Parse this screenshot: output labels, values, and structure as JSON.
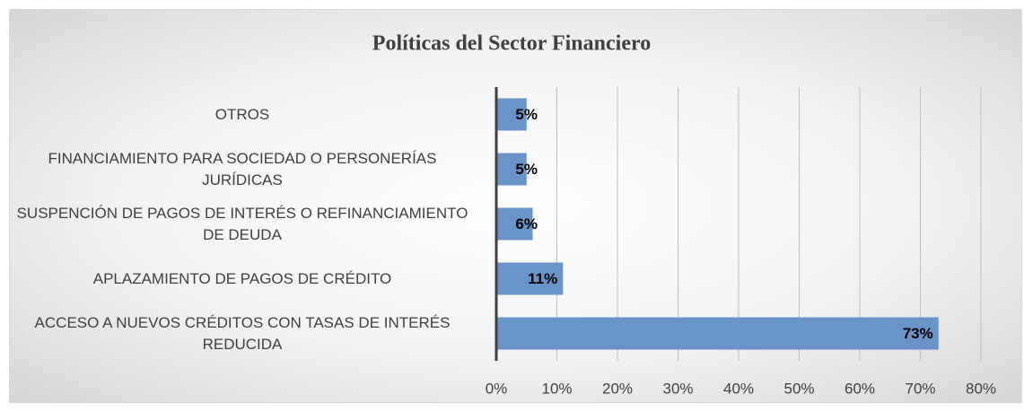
{
  "chart_data": {
    "type": "barh",
    "title": "Políticas del Sector Financiero",
    "categories": [
      "OTROS",
      "FINANCIAMIENTO PARA SOCIEDAD O PERSONERÍAS JURÍDICAS",
      "SUSPENCIÓN DE PAGOS DE INTERÉS O REFINANCIAMIENTO DE DEUDA",
      "APLAZAMIENTO DE PAGOS DE CRÉDITO",
      "ACCESO A NUEVOS CRÉDITOS CON TASAS DE INTERÉS REDUCIDA"
    ],
    "values": [
      5,
      5,
      6,
      11,
      73
    ],
    "value_labels": [
      "5%",
      "5%",
      "6%",
      "11%",
      "73%"
    ],
    "color": "#6a93c8",
    "xlim": [
      0,
      80
    ],
    "xticks": [
      {
        "value": 0,
        "label": "0%"
      },
      {
        "value": 10,
        "label": "10%"
      },
      {
        "value": 20,
        "label": "20%"
      },
      {
        "value": 30,
        "label": "30%"
      },
      {
        "value": 40,
        "label": "40%"
      },
      {
        "value": 50,
        "label": "50%"
      },
      {
        "value": 60,
        "label": "60%"
      },
      {
        "value": 70,
        "label": "70%"
      },
      {
        "value": 80,
        "label": "80%"
      }
    ],
    "grid": true
  }
}
